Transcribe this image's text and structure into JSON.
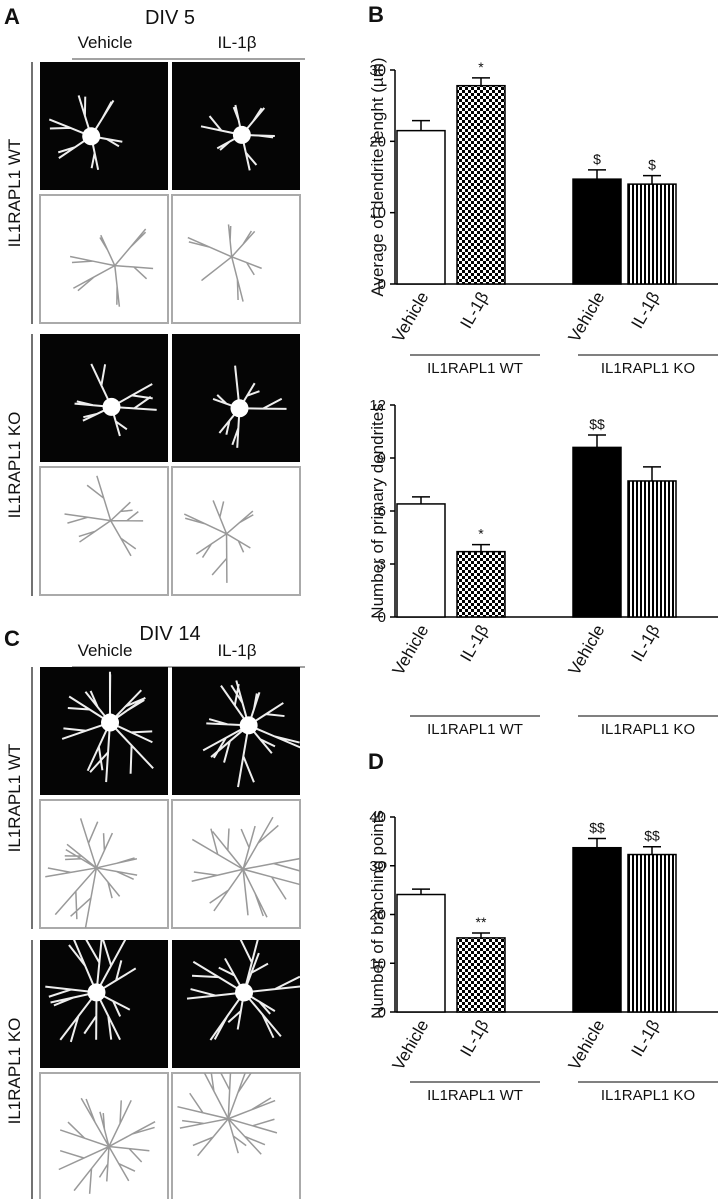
{
  "panels": {
    "A": {
      "letter": "A",
      "title": "DIV 5",
      "columns": [
        "Vehicle",
        "IL-1β"
      ],
      "rows": [
        "IL1RAPL1 WT",
        "IL1RAPL1 KO"
      ]
    },
    "C": {
      "letter": "C",
      "title": "DIV 14",
      "columns": [
        "Vehicle",
        "IL-1β"
      ],
      "rows": [
        "IL1RAPL1 WT",
        "IL1RAPL1 KO"
      ]
    }
  },
  "chart_data": [
    {
      "type": "bar",
      "panel_label": "B",
      "y_label": "Average of dendrite lenght (µm)",
      "categories": [
        "Vehicle",
        "IL-1β",
        "Vehicle",
        "IL-1β"
      ],
      "groups": [
        "IL1RAPL1 WT",
        "IL1RAPL1 KO"
      ],
      "values": [
        21.5,
        27.8,
        14.7,
        14.0
      ],
      "errors": [
        1.4,
        1.1,
        1.3,
        1.2
      ],
      "significance": [
        null,
        "*",
        "$",
        "$"
      ],
      "fills": [
        "white",
        "checker",
        "black",
        "stripes"
      ],
      "ylim": [
        0,
        30
      ],
      "yticks": [
        0,
        10,
        20,
        30
      ]
    },
    {
      "type": "bar",
      "y_label": "Number of primary dendrites",
      "categories": [
        "Vehicle",
        "IL-1β",
        "Vehicle",
        "IL-1β"
      ],
      "groups": [
        "IL1RAPL1 WT",
        "IL1RAPL1 KO"
      ],
      "values": [
        6.4,
        3.7,
        9.6,
        7.7
      ],
      "errors": [
        0.4,
        0.4,
        0.7,
        0.8
      ],
      "significance": [
        null,
        "*",
        "$$",
        null
      ],
      "fills": [
        "white",
        "checker",
        "black",
        "stripes"
      ],
      "ylim": [
        0,
        12
      ],
      "yticks": [
        0,
        3,
        6,
        9,
        12
      ]
    },
    {
      "type": "bar",
      "panel_label": "D",
      "y_label": "Number of branching points",
      "categories": [
        "Vehicle",
        "IL-1β",
        "Vehicle",
        "IL-1β"
      ],
      "groups": [
        "IL1RAPL1 WT",
        "IL1RAPL1 KO"
      ],
      "values": [
        24.1,
        15.2,
        33.7,
        32.3
      ],
      "errors": [
        1.1,
        1.0,
        1.9,
        1.6
      ],
      "significance": [
        null,
        "**",
        "$$",
        "$$"
      ],
      "fills": [
        "white",
        "checker",
        "black",
        "stripes"
      ],
      "ylim": [
        0,
        40
      ],
      "yticks": [
        0,
        10,
        20,
        30,
        40
      ]
    }
  ]
}
